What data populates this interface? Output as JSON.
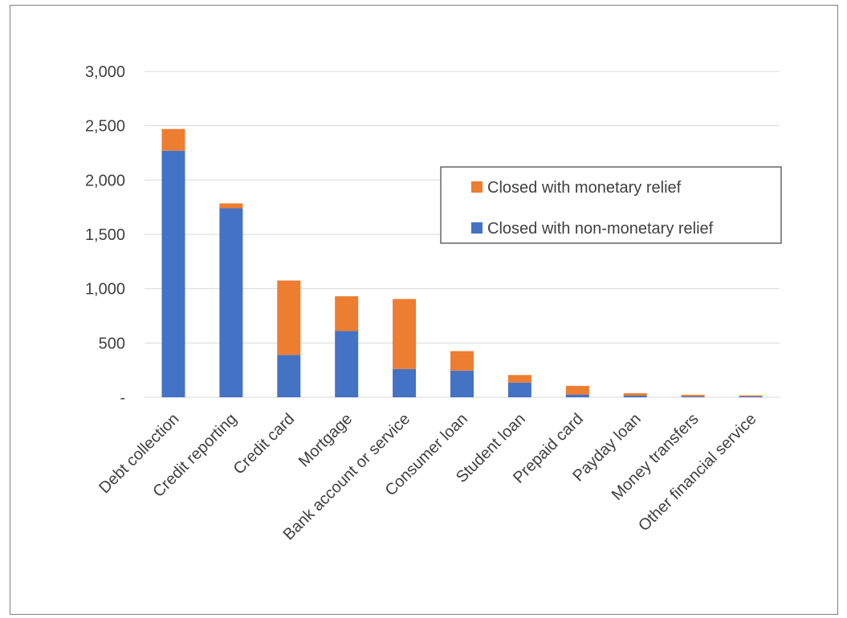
{
  "chart_data": {
    "type": "bar",
    "stacked": true,
    "categories": [
      "Debt collection",
      "Credit reporting",
      "Credit card",
      "Mortgage",
      "Bank account or service",
      "Consumer loan",
      "Student loan",
      "Prepaid card",
      "Payday loan",
      "Money transfers",
      "Other financial service"
    ],
    "series": [
      {
        "name": "Closed with non-monetary relief",
        "color": "#4472C4",
        "values": [
          2270,
          1740,
          390,
          610,
          260,
          245,
          135,
          25,
          15,
          8,
          8
        ]
      },
      {
        "name": "Closed with monetary relief",
        "color": "#ED7D31",
        "values": [
          200,
          45,
          685,
          320,
          645,
          180,
          70,
          80,
          22,
          15,
          10
        ]
      }
    ],
    "ylim": [
      0,
      3000
    ],
    "yticks": [
      0,
      500,
      1000,
      1500,
      2000,
      2500,
      3000
    ],
    "ytick_labels": [
      "-",
      "500",
      "1,000",
      "1,500",
      "2,000",
      "2,500",
      "3,000"
    ],
    "grid": true,
    "legend": {
      "placement": "right-center",
      "entries": [
        "Closed with monetary relief",
        "Closed with non-monetary relief"
      ]
    },
    "gridline_color": "#d9d9d9"
  }
}
